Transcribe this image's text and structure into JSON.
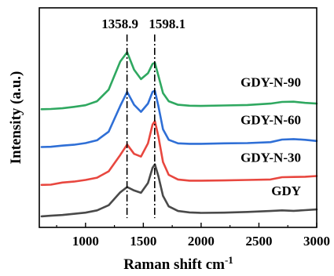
{
  "chart_data": {
    "type": "line",
    "xlabel": "Raman shift cm",
    "xlabel_superscript": "-1",
    "ylabel": "Intensity (a.u.)",
    "xlim": [
      600,
      3000
    ],
    "x_ticks": [
      1000,
      1500,
      2000,
      2500,
      3000
    ],
    "y_ticks": "none",
    "grid": false,
    "legend": "labels placed next to each curve",
    "peaks": [
      {
        "label": "1358.9",
        "x": 1358.9
      },
      {
        "label": "1598.1",
        "x": 1598.1
      }
    ],
    "series": [
      {
        "name": "GDY",
        "color": "#4a4a4a",
        "points": [
          [
            620,
            0.75
          ],
          [
            700,
            1.0
          ],
          [
            800,
            1.3
          ],
          [
            900,
            1.8
          ],
          [
            1000,
            2.3
          ],
          [
            1100,
            3.3
          ],
          [
            1200,
            5.5
          ],
          [
            1300,
            11.0
          ],
          [
            1360,
            13.3
          ],
          [
            1420,
            11.8
          ],
          [
            1480,
            10.8
          ],
          [
            1540,
            15.0
          ],
          [
            1580,
            21.5
          ],
          [
            1600,
            23.0
          ],
          [
            1630,
            18.0
          ],
          [
            1670,
            9.5
          ],
          [
            1720,
            5.0
          ],
          [
            1800,
            3.0
          ],
          [
            1900,
            2.4
          ],
          [
            2000,
            2.2
          ],
          [
            2200,
            2.3
          ],
          [
            2400,
            2.6
          ],
          [
            2600,
            3.0
          ],
          [
            2700,
            3.3
          ],
          [
            2800,
            3.1
          ],
          [
            2900,
            3.4
          ],
          [
            3000,
            3.7
          ]
        ]
      },
      {
        "name": "GDY-N-30",
        "color": "#e8473f",
        "points": [
          [
            620,
            14.2
          ],
          [
            700,
            14.3
          ],
          [
            800,
            15.2
          ],
          [
            900,
            15.6
          ],
          [
            1000,
            16.3
          ],
          [
            1100,
            17.3
          ],
          [
            1200,
            20.0
          ],
          [
            1300,
            27.0
          ],
          [
            1360,
            31.5
          ],
          [
            1420,
            27.5
          ],
          [
            1480,
            26.3
          ],
          [
            1540,
            32.0
          ],
          [
            1580,
            40.0
          ],
          [
            1600,
            41.5
          ],
          [
            1630,
            35.0
          ],
          [
            1670,
            24.0
          ],
          [
            1720,
            18.5
          ],
          [
            1800,
            16.5
          ],
          [
            1900,
            16.0
          ],
          [
            2000,
            16.0
          ],
          [
            2200,
            16.1
          ],
          [
            2400,
            16.3
          ],
          [
            2600,
            16.5
          ],
          [
            2700,
            17.5
          ],
          [
            2800,
            17.6
          ],
          [
            2900,
            17.7
          ],
          [
            3000,
            18.0
          ]
        ]
      },
      {
        "name": "GDY-N-60",
        "color": "#2f6fd6",
        "points": [
          [
            620,
            30.4
          ],
          [
            700,
            30.5
          ],
          [
            800,
            31.0
          ],
          [
            900,
            31.4
          ],
          [
            1000,
            32.1
          ],
          [
            1100,
            33.3
          ],
          [
            1200,
            37.0
          ],
          [
            1300,
            48.0
          ],
          [
            1360,
            54.0
          ],
          [
            1420,
            48.5
          ],
          [
            1480,
            45.5
          ],
          [
            1540,
            49.0
          ],
          [
            1580,
            54.0
          ],
          [
            1600,
            54.5
          ],
          [
            1630,
            48.0
          ],
          [
            1670,
            38.0
          ],
          [
            1720,
            33.5
          ],
          [
            1800,
            32.0
          ],
          [
            1900,
            31.8
          ],
          [
            2000,
            31.8
          ],
          [
            2200,
            32.0
          ],
          [
            2400,
            32.1
          ],
          [
            2600,
            32.5
          ],
          [
            2700,
            33.6
          ],
          [
            2800,
            33.8
          ],
          [
            2900,
            33.5
          ],
          [
            3000,
            33.0
          ]
        ]
      },
      {
        "name": "GDY-N-90",
        "color": "#2fa860",
        "points": [
          [
            620,
            46.6
          ],
          [
            700,
            46.7
          ],
          [
            800,
            47.0
          ],
          [
            900,
            47.6
          ],
          [
            1000,
            48.3
          ],
          [
            1100,
            50.0
          ],
          [
            1200,
            55.0
          ],
          [
            1300,
            67.0
          ],
          [
            1360,
            71.0
          ],
          [
            1420,
            63.5
          ],
          [
            1480,
            59.5
          ],
          [
            1540,
            62.0
          ],
          [
            1580,
            66.0
          ],
          [
            1600,
            66.5
          ],
          [
            1630,
            61.0
          ],
          [
            1670,
            53.5
          ],
          [
            1720,
            50.0
          ],
          [
            1800,
            48.5
          ],
          [
            1900,
            48.1
          ],
          [
            2000,
            48.0
          ],
          [
            2200,
            48.2
          ],
          [
            2400,
            48.4
          ],
          [
            2600,
            49.0
          ],
          [
            2700,
            49.7
          ],
          [
            2800,
            49.8
          ],
          [
            2900,
            49.3
          ],
          [
            3000,
            49.0
          ]
        ]
      }
    ]
  }
}
